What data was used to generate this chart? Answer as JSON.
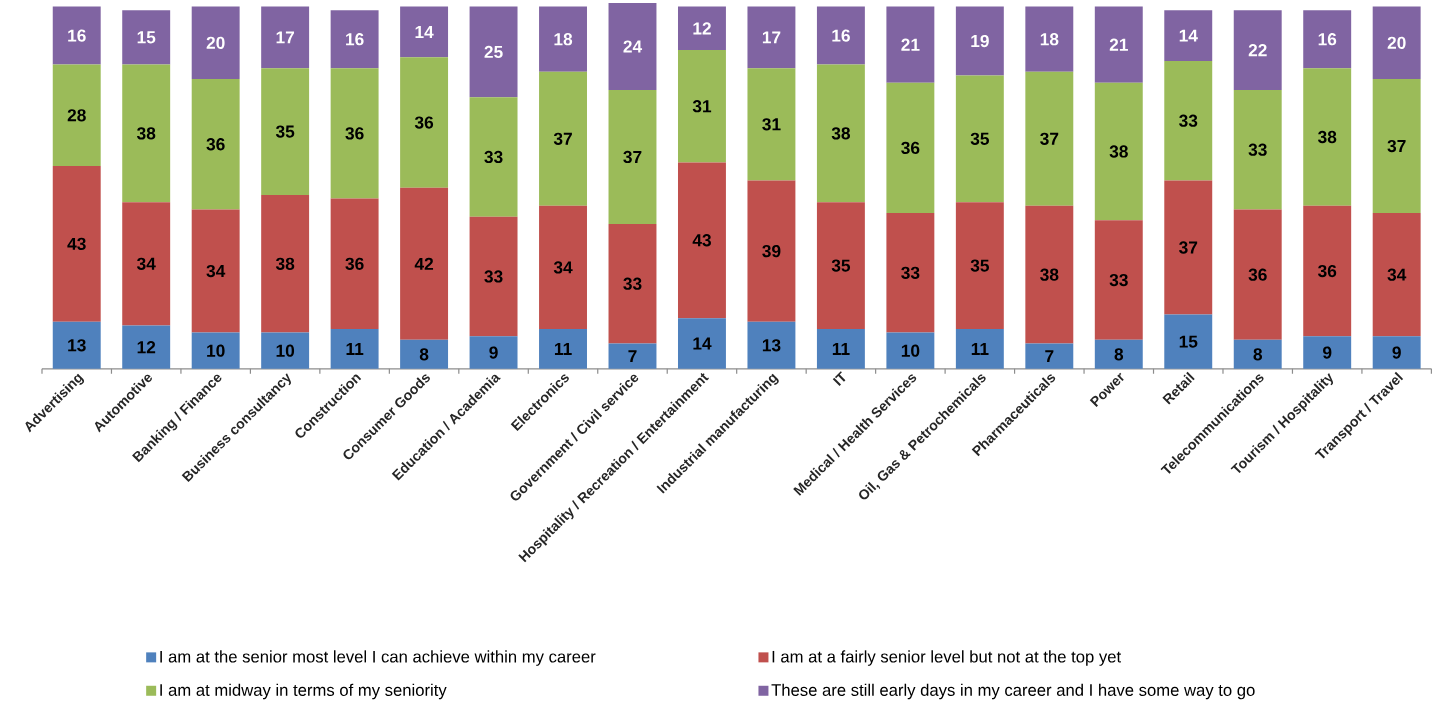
{
  "chart_data": {
    "type": "bar",
    "stacked": true,
    "data_labels": true,
    "legend": "bottom",
    "categories": [
      "Advertising",
      "Automotive",
      "Banking / Finance",
      "Business consultancy",
      "Construction",
      "Consumer Goods",
      "Education / Academia",
      "Electronics",
      "Government / Civil service",
      "Hospitality / Recreation / Entertainment",
      "Industrial manufacturing",
      "IT",
      "Medical / Health Services",
      "Oil, Gas & Petrochemicals",
      "Pharmaceuticals",
      "Power",
      "Retail",
      "Telecommunications",
      "Tourism / Hospitality",
      "Transport / Travel"
    ],
    "series": [
      {
        "name": "I am at the senior most level I can achieve within my career",
        "color": "#4f81bd",
        "values": [
          13,
          12,
          10,
          10,
          11,
          8,
          9,
          11,
          7,
          14,
          13,
          11,
          10,
          11,
          7,
          8,
          15,
          8,
          9,
          9
        ]
      },
      {
        "name": "I am at a fairly senior level but not at the top yet",
        "color": "#c0504d",
        "values": [
          43,
          34,
          34,
          38,
          36,
          42,
          33,
          34,
          33,
          43,
          39,
          35,
          33,
          35,
          38,
          33,
          37,
          36,
          36,
          34
        ]
      },
      {
        "name": "I am at midway in terms of my seniority",
        "color": "#9bbb59",
        "values": [
          28,
          38,
          36,
          35,
          36,
          36,
          33,
          37,
          37,
          31,
          31,
          38,
          36,
          35,
          37,
          38,
          33,
          33,
          38,
          37
        ]
      },
      {
        "name": "These are still early days in my career and I have some way to go",
        "color": "#8064a2",
        "values": [
          16,
          15,
          20,
          17,
          16,
          14,
          25,
          18,
          24,
          12,
          17,
          16,
          21,
          19,
          18,
          21,
          14,
          22,
          16,
          20
        ]
      }
    ]
  }
}
